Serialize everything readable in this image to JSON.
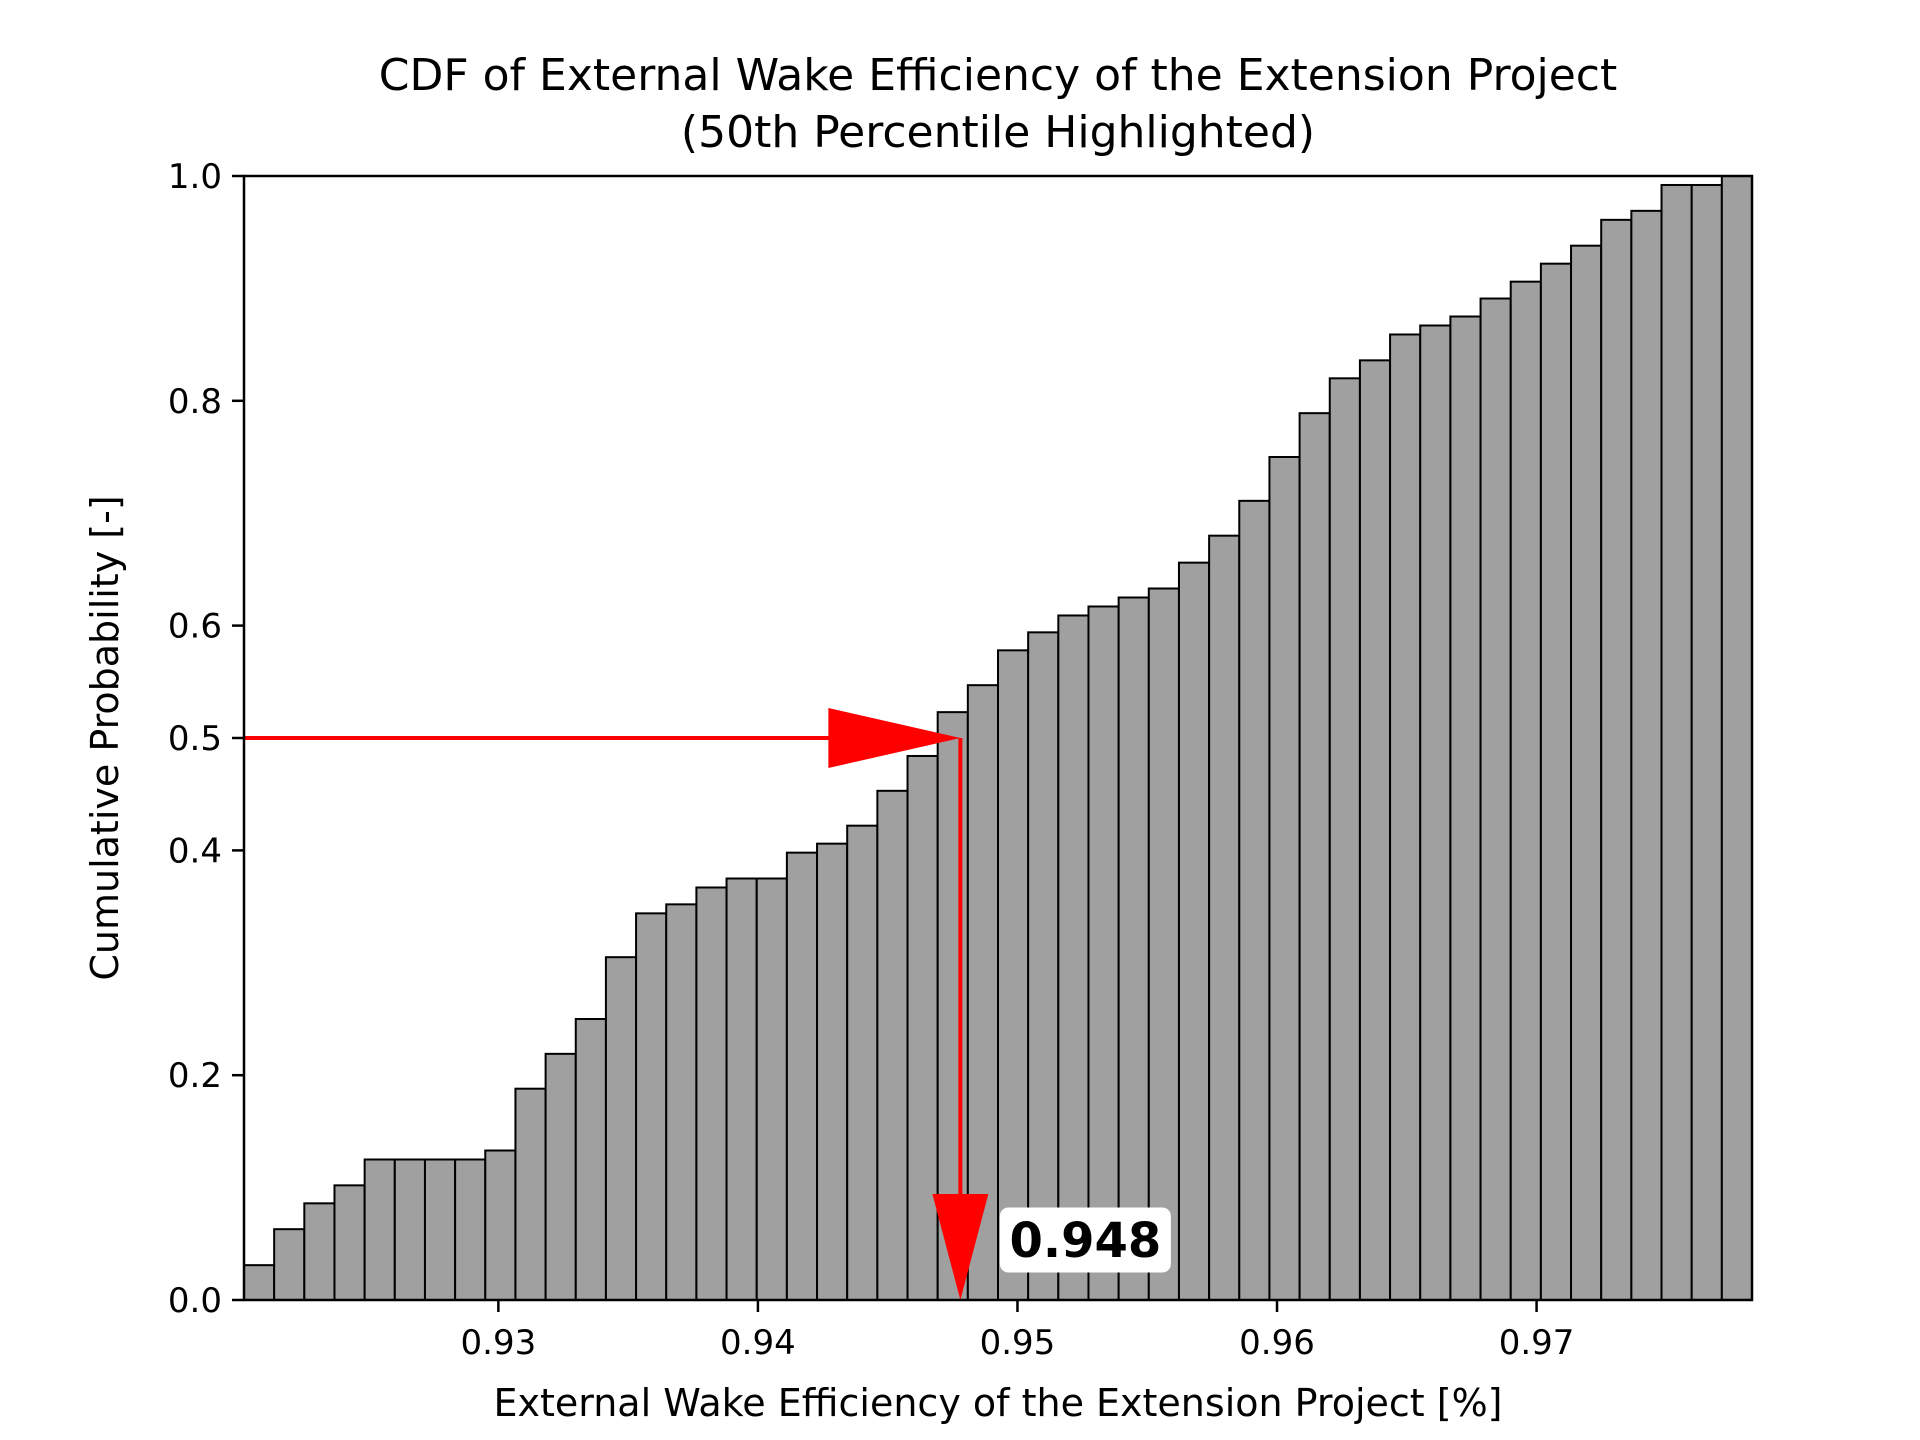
{
  "chart_data": {
    "type": "bar",
    "title": "CDF of External Wake Efficiency of the Extension Project",
    "subtitle": "(50th Percentile Highlighted)",
    "xlabel": "External Wake Efficiency of the Extension Project [%]",
    "ylabel": "Cumulative Probability [-]",
    "xlim": [
      0.9202,
      0.9783
    ],
    "ylim": [
      0.0,
      1.0
    ],
    "xticks": [
      0.93,
      0.94,
      0.95,
      0.96,
      0.97
    ],
    "xtick_labels": [
      "0.93",
      "0.94",
      "0.95",
      "0.96",
      "0.97"
    ],
    "yticks": [
      0.0,
      0.2,
      0.4,
      0.5,
      0.6,
      0.8,
      1.0
    ],
    "ytick_labels": [
      "0.0",
      "0.2",
      "0.4",
      "0.5",
      "0.6",
      "0.8",
      "1.0"
    ],
    "grid": false,
    "bar_color": "#a0a0a0",
    "edge_color": "#000000",
    "bin_edges_start": 0.9202,
    "bin_width": 0.001162,
    "values": [
      0.031,
      0.063,
      0.086,
      0.102,
      0.125,
      0.125,
      0.125,
      0.125,
      0.133,
      0.188,
      0.219,
      0.25,
      0.305,
      0.344,
      0.352,
      0.367,
      0.375,
      0.375,
      0.398,
      0.406,
      0.422,
      0.453,
      0.484,
      0.523,
      0.547,
      0.578,
      0.594,
      0.609,
      0.617,
      0.625,
      0.633,
      0.656,
      0.68,
      0.711,
      0.75,
      0.789,
      0.82,
      0.836,
      0.859,
      0.867,
      0.875,
      0.891,
      0.906,
      0.922,
      0.938,
      0.961,
      0.969,
      0.992,
      0.992,
      1.0
    ],
    "annotation": {
      "percentile_y": 0.5,
      "value_x": 0.9478,
      "label": "0.948",
      "color": "#ff0000"
    }
  }
}
